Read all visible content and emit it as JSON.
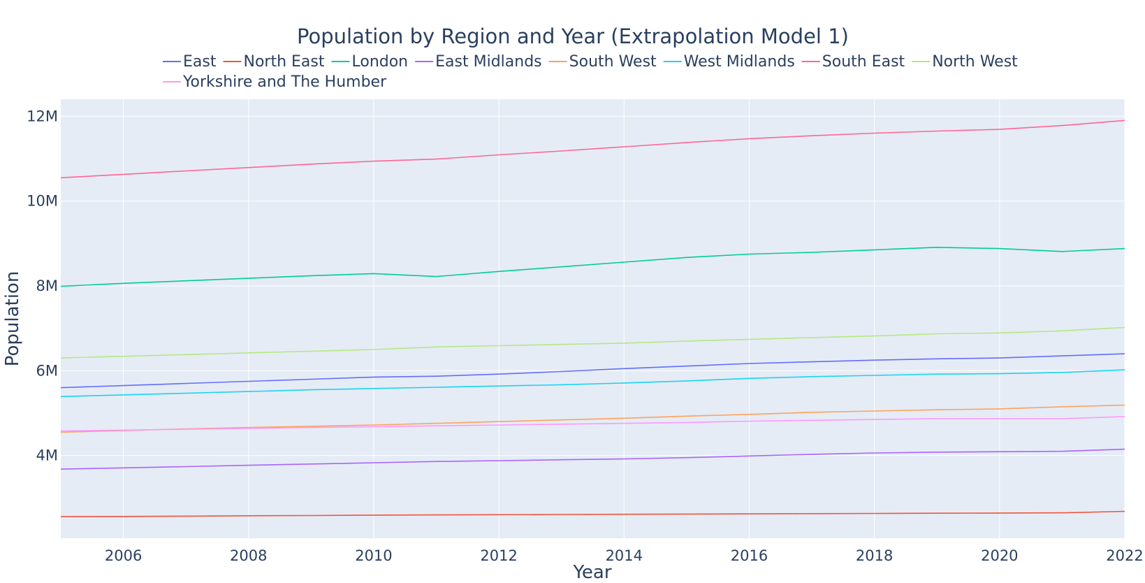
{
  "chart_data": {
    "type": "line",
    "title": "Population by Region and Year (Extrapolation Model 1)",
    "xlabel": "Year",
    "ylabel": "Population",
    "xlim": [
      2005,
      2022
    ],
    "ylim": [
      2050000,
      12400000
    ],
    "x_ticks": [
      2006,
      2008,
      2010,
      2012,
      2014,
      2016,
      2018,
      2020,
      2022
    ],
    "y_ticks": [
      {
        "value": 4000000,
        "label": "4M"
      },
      {
        "value": 6000000,
        "label": "6M"
      },
      {
        "value": 8000000,
        "label": "8M"
      },
      {
        "value": 10000000,
        "label": "10M"
      },
      {
        "value": 12000000,
        "label": "12M"
      }
    ],
    "grid": true,
    "legend_position": "top",
    "plot_background": "#e5ecf6",
    "x": [
      2005,
      2006,
      2007,
      2008,
      2009,
      2010,
      2011,
      2012,
      2013,
      2014,
      2015,
      2016,
      2017,
      2018,
      2019,
      2020,
      2021,
      2022
    ],
    "series": [
      {
        "name": "East",
        "color": "#636efa",
        "values": [
          5600000,
          5650000,
          5700000,
          5750000,
          5800000,
          5850000,
          5870000,
          5920000,
          5980000,
          6050000,
          6110000,
          6170000,
          6210000,
          6250000,
          6280000,
          6300000,
          6350000,
          6400000
        ]
      },
      {
        "name": "North East",
        "color": "#ef553b",
        "values": [
          2560000,
          2565000,
          2570000,
          2580000,
          2585000,
          2595000,
          2600000,
          2605000,
          2610000,
          2615000,
          2620000,
          2625000,
          2630000,
          2635000,
          2640000,
          2645000,
          2650000,
          2685000
        ]
      },
      {
        "name": "London",
        "color": "#00cc96",
        "values": [
          7990000,
          8060000,
          8120000,
          8180000,
          8240000,
          8290000,
          8220000,
          8340000,
          8450000,
          8560000,
          8670000,
          8750000,
          8790000,
          8850000,
          8910000,
          8880000,
          8810000,
          8880000
        ]
      },
      {
        "name": "East Midlands",
        "color": "#ab63fa",
        "values": [
          3680000,
          3710000,
          3740000,
          3770000,
          3800000,
          3830000,
          3860000,
          3880000,
          3900000,
          3920000,
          3950000,
          3990000,
          4030000,
          4060000,
          4080000,
          4090000,
          4100000,
          4150000
        ]
      },
      {
        "name": "South West",
        "color": "#ffa15a",
        "values": [
          4550000,
          4590000,
          4630000,
          4660000,
          4690000,
          4720000,
          4760000,
          4800000,
          4840000,
          4880000,
          4930000,
          4970000,
          5020000,
          5050000,
          5080000,
          5100000,
          5150000,
          5190000
        ]
      },
      {
        "name": "West Midlands",
        "color": "#19d3f3",
        "values": [
          5390000,
          5430000,
          5470000,
          5510000,
          5550000,
          5580000,
          5610000,
          5640000,
          5670000,
          5710000,
          5760000,
          5820000,
          5860000,
          5890000,
          5920000,
          5930000,
          5960000,
          6020000
        ]
      },
      {
        "name": "South East",
        "color": "#ff6692",
        "values": [
          10550000,
          10630000,
          10710000,
          10790000,
          10870000,
          10940000,
          10990000,
          11090000,
          11180000,
          11280000,
          11380000,
          11470000,
          11540000,
          11600000,
          11650000,
          11690000,
          11780000,
          11900000
        ]
      },
      {
        "name": "North West",
        "color": "#b6e880",
        "values": [
          6300000,
          6340000,
          6380000,
          6420000,
          6460000,
          6500000,
          6560000,
          6590000,
          6620000,
          6650000,
          6700000,
          6740000,
          6780000,
          6820000,
          6870000,
          6890000,
          6940000,
          7020000
        ]
      },
      {
        "name": "Yorkshire and The Humber",
        "color": "#ff97ff",
        "values": [
          4580000,
          4600000,
          4620000,
          4640000,
          4660000,
          4680000,
          4700000,
          4720000,
          4740000,
          4760000,
          4780000,
          4810000,
          4830000,
          4850000,
          4870000,
          4870000,
          4870000,
          4920000
        ]
      }
    ]
  }
}
